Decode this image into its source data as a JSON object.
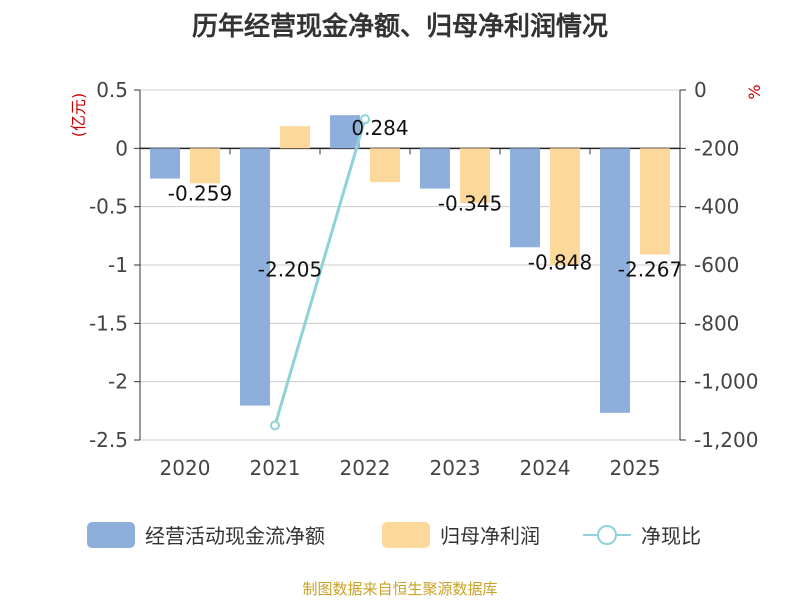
{
  "chart_data": {
    "type": "bar",
    "title": "历年经营现金净额、归母净利润情况",
    "categories": [
      "2020",
      "2021",
      "2022",
      "2023",
      "2024",
      "2025"
    ],
    "series": [
      {
        "name": "经营活动现金流净额",
        "type": "bar",
        "axis": "left",
        "color": "#8eaedb",
        "values": [
          -0.259,
          -2.205,
          0.284,
          -0.345,
          -0.848,
          -2.267
        ],
        "labels": [
          "-0.259",
          "-2.205",
          "0.284",
          "-0.345",
          "-0.848",
          "-2.267"
        ]
      },
      {
        "name": "归母净利润",
        "type": "bar",
        "axis": "left",
        "color": "#fdd89b",
        "values": [
          -0.3,
          0.19,
          -0.29,
          -0.47,
          -1.0,
          -0.91
        ]
      },
      {
        "name": "净现比",
        "type": "line",
        "axis": "right",
        "color": "#8fd3d9",
        "values": [
          null,
          -1150,
          -100,
          null,
          null,
          null
        ]
      }
    ],
    "left_axis": {
      "label": "(亿元)",
      "range": [
        -2.5,
        0.5
      ],
      "ticks": [
        0.5,
        0,
        -0.5,
        -1,
        -1.5,
        -2,
        -2.5
      ],
      "tick_labels": [
        "0.5",
        "0",
        "-0.5",
        "-1",
        "-1.5",
        "-2",
        "-2.5"
      ]
    },
    "right_axis": {
      "label": "%",
      "range": [
        -1200,
        0
      ],
      "ticks": [
        0,
        -200,
        -400,
        -600,
        -800,
        -1000,
        -1200
      ],
      "tick_labels": [
        "0",
        "-200",
        "-400",
        "-600",
        "-800",
        "-1,000",
        "-1,200"
      ]
    },
    "legend": [
      "经营活动现金流净额",
      "归母净利润",
      "净现比"
    ],
    "legend_position": "bottom",
    "grid": true
  },
  "footer": {
    "text": "制图数据来自恒生聚源数据库",
    "color": "#c9a227"
  },
  "colors": {
    "axis_label": "#cc0000",
    "grid": "#cccccc",
    "axis": "#333333"
  }
}
